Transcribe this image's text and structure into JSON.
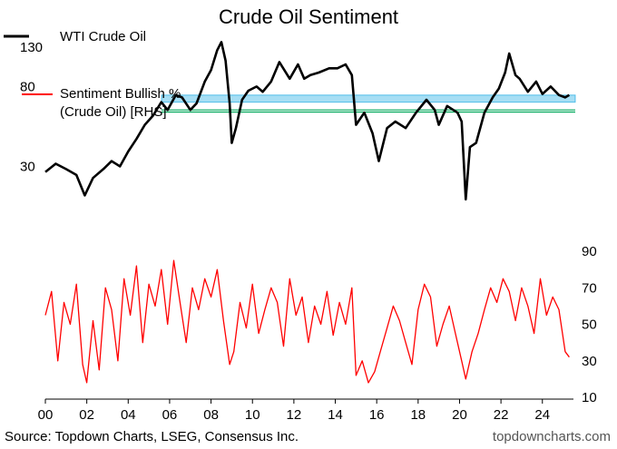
{
  "chart_data": {
    "type": "line",
    "title": "Crude Oil Sentiment",
    "legend_position": "top-left",
    "grid": false,
    "source": "Source: Topdown Charts, LSEG, Consensus Inc.",
    "brand": "topdowncharts.com",
    "x_ticks": [
      "00",
      "02",
      "04",
      "06",
      "08",
      "10",
      "12",
      "14",
      "16",
      "18",
      "20",
      "22",
      "24"
    ],
    "xlim": [
      2000,
      2025.5
    ],
    "left_axis": {
      "ticks": [
        30,
        80,
        130
      ],
      "ylim": [
        10,
        145
      ],
      "scale": "log"
    },
    "right_axis": {
      "ticks": [
        10,
        30,
        50,
        70,
        90
      ],
      "ylim": [
        10,
        97
      ]
    },
    "series": [
      {
        "name": "WTI Crude Oil",
        "axis": "left",
        "color": "#000000",
        "x": [
          2000.0,
          2000.5,
          2001.0,
          2001.5,
          2001.9,
          2002.3,
          2002.8,
          2003.2,
          2003.6,
          2004.0,
          2004.4,
          2004.8,
          2005.2,
          2005.6,
          2005.9,
          2006.3,
          2006.6,
          2007.0,
          2007.3,
          2007.7,
          2008.0,
          2008.3,
          2008.5,
          2008.7,
          2008.9,
          2009.0,
          2009.2,
          2009.5,
          2009.8,
          2010.2,
          2010.5,
          2010.9,
          2011.3,
          2011.8,
          2012.2,
          2012.5,
          2012.8,
          2013.2,
          2013.7,
          2014.1,
          2014.5,
          2014.8,
          2015.0,
          2015.4,
          2015.8,
          2016.1,
          2016.5,
          2016.9,
          2017.4,
          2017.9,
          2018.4,
          2018.8,
          2019.0,
          2019.4,
          2019.9,
          2020.1,
          2020.3,
          2020.5,
          2020.8,
          2021.2,
          2021.6,
          2021.9,
          2022.2,
          2022.4,
          2022.7,
          2022.9,
          2023.3,
          2023.7,
          2024.0,
          2024.4,
          2024.8,
          2025.1,
          2025.3
        ],
        "values": [
          28,
          31,
          29,
          27,
          21,
          26,
          29,
          32,
          30,
          36,
          42,
          50,
          56,
          66,
          60,
          72,
          70,
          60,
          65,
          85,
          98,
          125,
          138,
          110,
          65,
          40,
          48,
          68,
          76,
          80,
          75,
          85,
          108,
          88,
          105,
          88,
          92,
          95,
          100,
          100,
          105,
          92,
          50,
          58,
          45,
          32,
          48,
          52,
          48,
          58,
          68,
          60,
          50,
          63,
          58,
          52,
          20,
          38,
          40,
          58,
          70,
          78,
          95,
          120,
          92,
          88,
          75,
          85,
          73,
          80,
          72,
          70,
          72
        ]
      },
      {
        "name": "Sentiment Bullish % (Crude Oil) [RHS]",
        "axis": "right",
        "color": "#ff0000",
        "x": [
          2000.0,
          2000.3,
          2000.6,
          2000.9,
          2001.2,
          2001.5,
          2001.8,
          2002.0,
          2002.3,
          2002.6,
          2002.9,
          2003.2,
          2003.5,
          2003.8,
          2004.1,
          2004.4,
          2004.7,
          2005.0,
          2005.3,
          2005.6,
          2005.9,
          2006.2,
          2006.5,
          2006.8,
          2007.1,
          2007.4,
          2007.7,
          2008.0,
          2008.3,
          2008.6,
          2008.9,
          2009.1,
          2009.4,
          2009.7,
          2010.0,
          2010.3,
          2010.6,
          2010.9,
          2011.2,
          2011.5,
          2011.8,
          2012.1,
          2012.4,
          2012.7,
          2013.0,
          2013.3,
          2013.6,
          2013.9,
          2014.2,
          2014.5,
          2014.8,
          2015.0,
          2015.3,
          2015.6,
          2015.9,
          2016.2,
          2016.5,
          2016.8,
          2017.1,
          2017.4,
          2017.7,
          2018.0,
          2018.3,
          2018.6,
          2018.9,
          2019.2,
          2019.5,
          2019.8,
          2020.1,
          2020.3,
          2020.6,
          2020.9,
          2021.2,
          2021.5,
          2021.8,
          2022.1,
          2022.4,
          2022.7,
          2023.0,
          2023.3,
          2023.6,
          2023.9,
          2024.2,
          2024.5,
          2024.8,
          2025.1,
          2025.3
        ],
        "values": [
          55,
          68,
          30,
          62,
          50,
          72,
          28,
          18,
          52,
          25,
          70,
          58,
          30,
          75,
          55,
          82,
          40,
          72,
          60,
          80,
          50,
          85,
          62,
          40,
          70,
          58,
          75,
          65,
          80,
          52,
          28,
          35,
          62,
          48,
          72,
          45,
          58,
          70,
          62,
          38,
          75,
          55,
          65,
          40,
          60,
          50,
          68,
          44,
          62,
          50,
          70,
          22,
          30,
          18,
          24,
          36,
          48,
          60,
          52,
          40,
          28,
          58,
          72,
          65,
          38,
          50,
          60,
          45,
          30,
          20,
          35,
          45,
          58,
          70,
          62,
          75,
          68,
          52,
          70,
          60,
          45,
          75,
          55,
          65,
          58,
          35,
          32
        ]
      }
    ],
    "bands": [
      {
        "axis": "left",
        "y1": 66,
        "y2": 72,
        "color": "#00a0e0"
      }
    ],
    "lines": [
      {
        "axis": "left",
        "y": 58.5,
        "color": "#00a85a"
      },
      {
        "axis": "left",
        "y": 60,
        "color": "#00a85a"
      }
    ]
  }
}
